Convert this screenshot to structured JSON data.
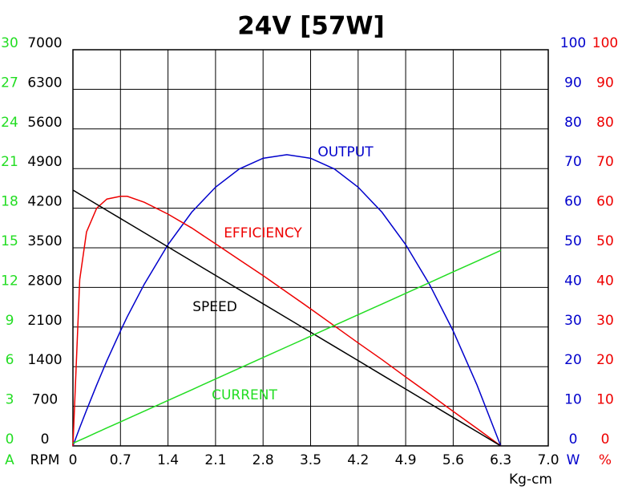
{
  "chart_data": {
    "type": "line",
    "title": "24V [57W]",
    "xlabel": "Kg-cm",
    "x": [
      0,
      0.1,
      0.2,
      0.35,
      0.5,
      0.7,
      0.8,
      1.05,
      1.4,
      1.75,
      2.1,
      2.45,
      2.8,
      3.15,
      3.5,
      3.85,
      4.2,
      4.55,
      4.9,
      5.25,
      5.6,
      5.95,
      6.3
    ],
    "xlim": [
      0,
      7
    ],
    "xticks": [
      0,
      0.7,
      1.4,
      2.1,
      2.8,
      3.5,
      4.2,
      4.9,
      5.6,
      6.3,
      {
        "value": 7,
        "label": "7.0"
      }
    ],
    "grid": true,
    "axes": [
      {
        "unit": "A",
        "side": "left",
        "color": "#22dd22",
        "lim": [
          0,
          30
        ],
        "ticks": [
          0,
          3,
          6,
          9,
          12,
          15,
          18,
          21,
          24,
          27,
          30
        ]
      },
      {
        "unit": "RPM",
        "side": "left",
        "color": "#000000",
        "lim": [
          0,
          7000
        ],
        "ticks": [
          0,
          700,
          1400,
          2100,
          2800,
          3500,
          4200,
          4900,
          5600,
          6300,
          7000
        ]
      },
      {
        "unit": "W",
        "side": "right",
        "color": "#0000cc",
        "lim": [
          0,
          100
        ],
        "ticks": [
          0,
          10,
          20,
          30,
          40,
          50,
          60,
          70,
          80,
          90,
          100
        ]
      },
      {
        "unit": "%",
        "side": "right",
        "color": "#ee0000",
        "lim": [
          0,
          100
        ],
        "ticks": [
          0,
          10,
          20,
          30,
          40,
          50,
          60,
          70,
          80,
          90,
          100
        ]
      }
    ],
    "series": [
      {
        "name": "OUTPUT",
        "color": "#0000cc",
        "axis": 2,
        "values": [
          0,
          4.6,
          9.0,
          15.4,
          21.5,
          29.0,
          32.6,
          40.8,
          50.8,
          59.0,
          65.3,
          69.9,
          72.6,
          73.5,
          72.6,
          69.9,
          65.3,
          59.0,
          50.8,
          40.8,
          29.0,
          15.4,
          0
        ]
      },
      {
        "name": "EFFICIENCY",
        "color": "#ee0000",
        "axis": 3,
        "values": [
          0,
          42,
          54,
          60,
          62.3,
          63,
          63,
          61.5,
          58.5,
          55,
          51,
          47,
          43,
          38.8,
          34.6,
          30.3,
          26,
          21.8,
          17.4,
          13.1,
          8.7,
          4.4,
          0
        ]
      },
      {
        "name": "SPEED",
        "color": "#000000",
        "axis": 1,
        "values": [
          4520,
          4448,
          4377,
          4269,
          4161,
          4018,
          3946,
          3767,
          3516,
          3264,
          3013,
          2762,
          2511,
          2260,
          2009,
          1758,
          1507,
          1255,
          1004,
          753,
          502,
          251,
          0
        ]
      },
      {
        "name": "CURRENT",
        "color": "#22dd22",
        "axis": 0,
        "values": [
          0.2,
          0.43,
          0.66,
          1.01,
          1.36,
          1.82,
          2.05,
          2.63,
          3.44,
          4.25,
          5.07,
          5.88,
          6.69,
          7.5,
          8.31,
          9.12,
          9.93,
          10.74,
          11.55,
          12.36,
          13.18,
          13.99,
          14.8
        ]
      }
    ]
  }
}
